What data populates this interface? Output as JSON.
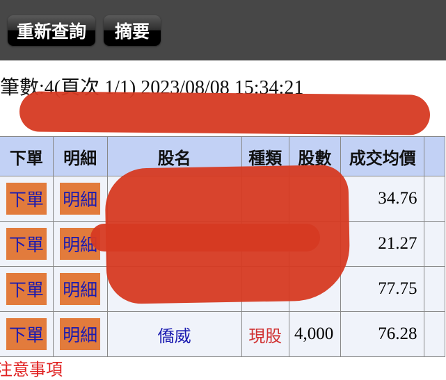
{
  "toolbar": {
    "requery_label": "重新查詢",
    "summary_label": "摘要"
  },
  "info": {
    "record_line": "筆數:4(頁次 1/1) 2023/08/08 15:34:21"
  },
  "table": {
    "headers": [
      "下單",
      "明細",
      "股名",
      "種類",
      "股數",
      "成交均價"
    ],
    "rows": [
      {
        "order": "下單",
        "detail": "明細",
        "name": "",
        "type": "",
        "shares": "",
        "avg_price": "34.76"
      },
      {
        "order": "下單",
        "detail": "明細",
        "name": "",
        "type": "",
        "shares": "",
        "avg_price": "21.27"
      },
      {
        "order": "下單",
        "detail": "明細",
        "name": "",
        "type": "",
        "shares": "",
        "avg_price": "77.75"
      },
      {
        "order": "下單",
        "detail": "明細",
        "name": "僑威",
        "type": "現股",
        "shares": "4,000",
        "avg_price": "76.28"
      }
    ]
  },
  "footer": {
    "note": "注意事項"
  },
  "colors": {
    "header_bg": "#c2d1f5",
    "button_orange": "#e27b3c",
    "link_blue": "#1a1ab0",
    "type_red": "#d03030"
  }
}
